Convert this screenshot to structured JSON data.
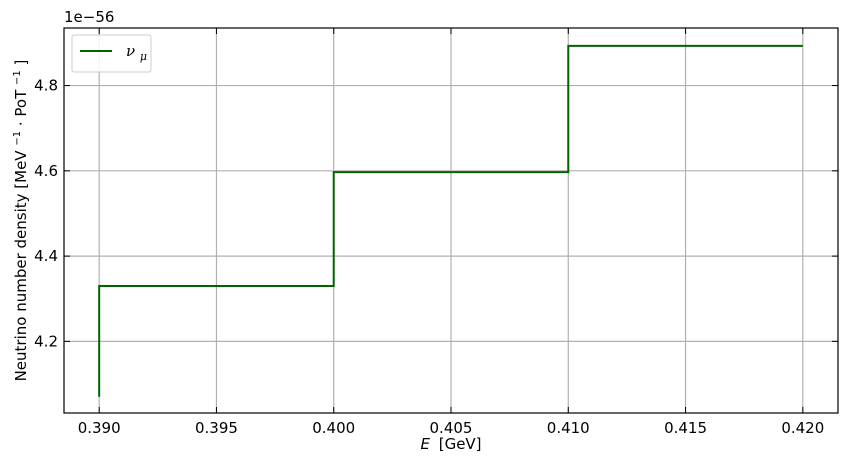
{
  "chart_data": {
    "type": "line",
    "drawstyle": "steps",
    "series": [
      {
        "name": "ν",
        "name_subscript": "μ",
        "color": "#006400",
        "x": [
          0.39,
          0.39,
          0.4,
          0.4,
          0.41,
          0.41,
          0.42
        ],
        "y": [
          4.07,
          4.33,
          4.33,
          4.597,
          4.597,
          4.893,
          4.893
        ]
      }
    ],
    "xlabel": "E",
    "xlabel_unit": "[GeV]",
    "ylabel": "Neutrino number density [MeV",
    "ylabel_sup1": "−1",
    "ylabel_mid": " · PoT",
    "ylabel_sup2": "−1",
    "ylabel_end": "]",
    "offset_text": "1e−56",
    "xlim": [
      0.3885,
      0.4215
    ],
    "ylim": [
      4.032,
      4.935
    ],
    "xticks": [
      0.39,
      0.395,
      0.4,
      0.405,
      0.41,
      0.415,
      0.42
    ],
    "xtick_labels": [
      "0.390",
      "0.395",
      "0.400",
      "0.405",
      "0.410",
      "0.415",
      "0.420"
    ],
    "yticks": [
      4.2,
      4.4,
      4.6,
      4.8
    ],
    "ytick_labels": [
      "4.2",
      "4.4",
      "4.6",
      "4.8"
    ],
    "grid": true,
    "legend_position": "top-left"
  }
}
